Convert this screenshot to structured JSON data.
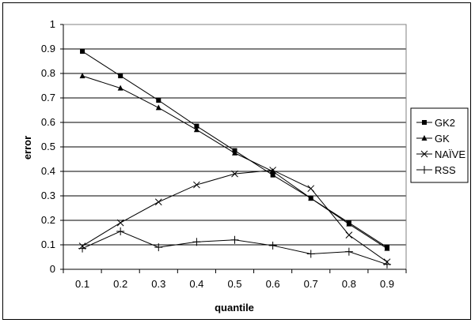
{
  "chart_data": {
    "type": "line",
    "title": "",
    "xlabel": "quantile",
    "ylabel": "error",
    "categories": [
      "0.1",
      "0.2",
      "0.3",
      "0.4",
      "0.5",
      "0.6",
      "0.7",
      "0.8",
      "0.9"
    ],
    "ylim": [
      0,
      1
    ],
    "yticks": [
      "0",
      "0.1",
      "0.2",
      "0.3",
      "0.4",
      "0.5",
      "0.6",
      "0.7",
      "0.8",
      "0.9",
      "1"
    ],
    "grid": "horizontal",
    "legend": "right",
    "series": [
      {
        "name": "GK2",
        "marker": "square",
        "values": [
          0.89,
          0.79,
          0.69,
          0.585,
          0.485,
          0.385,
          0.29,
          0.19,
          0.09
        ]
      },
      {
        "name": "GK",
        "marker": "triangle",
        "values": [
          0.79,
          0.74,
          0.66,
          0.57,
          0.475,
          0.4,
          0.29,
          0.185,
          0.085
        ]
      },
      {
        "name": "NAÏVE",
        "marker": "x",
        "values": [
          0.095,
          0.19,
          0.275,
          0.345,
          0.39,
          0.405,
          0.33,
          0.14,
          0.03
        ]
      },
      {
        "name": "RSS",
        "marker": "plus",
        "values": [
          0.085,
          0.155,
          0.09,
          0.112,
          0.12,
          0.097,
          0.063,
          0.072,
          0.02
        ]
      }
    ]
  }
}
